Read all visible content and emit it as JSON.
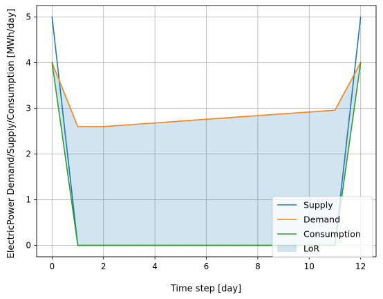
{
  "chart_data": {
    "type": "line",
    "title": "",
    "xlabel": "Time step [day]",
    "ylabel": "ElectricPower Demand/Supply/Consumption [MWh/day]",
    "xlim": [
      -0.6,
      12.6
    ],
    "ylim": [
      -0.25,
      5.25
    ],
    "xticks": [
      0,
      2,
      4,
      6,
      8,
      10,
      12
    ],
    "yticks": [
      0,
      1,
      2,
      3,
      4,
      5
    ],
    "grid": true,
    "legend_position": "lower-right",
    "x": [
      0,
      1,
      2,
      3,
      4,
      5,
      6,
      7,
      8,
      9,
      10,
      11,
      12
    ],
    "series": [
      {
        "name": "Supply",
        "color": "#1f77b4",
        "values": [
          5,
          0,
          0,
          0,
          0,
          0,
          0,
          0,
          0,
          0,
          0,
          0,
          5
        ]
      },
      {
        "name": "Demand",
        "color": "#ff7f0e",
        "values": [
          4,
          2.6,
          2.6,
          2.64,
          2.68,
          2.72,
          2.76,
          2.8,
          2.84,
          2.88,
          2.92,
          2.96,
          4
        ]
      },
      {
        "name": "Consumption",
        "color": "#2ca02c",
        "values": [
          4,
          0,
          0,
          0,
          0,
          0,
          0,
          0,
          0,
          0,
          0,
          0,
          4
        ]
      }
    ],
    "fill": {
      "name": "LoR",
      "color": "#1f77b4",
      "opacity": 0.2,
      "between": [
        "Demand",
        "Consumption"
      ]
    }
  }
}
